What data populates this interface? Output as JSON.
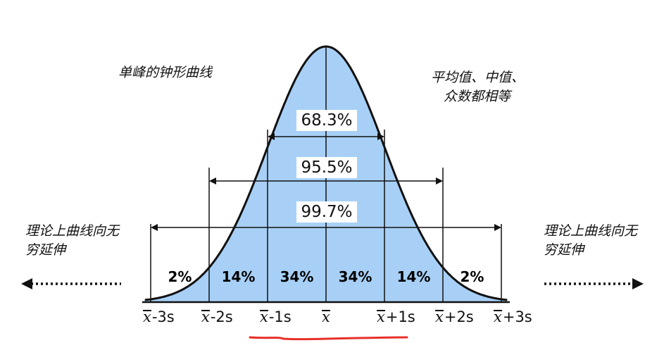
{
  "notes": {
    "bell_curve": "单峰的钟形曲线",
    "mean_equal_line1": "平均值、中值、",
    "mean_equal_line2": "众数都相等",
    "left_infinite_line1": "理论上曲线向无",
    "left_infinite_line2": "穷延伸",
    "right_infinite_line1": "理论上曲线向无",
    "right_infinite_line2": "穷延伸"
  },
  "intervals": [
    {
      "label": "68.3%",
      "from": -1,
      "to": 1
    },
    {
      "label": "95.5%",
      "from": -2,
      "to": 2
    },
    {
      "label": "99.7%",
      "from": -3,
      "to": 3
    }
  ],
  "segments": [
    {
      "label": "2%",
      "from": -3,
      "to": -2
    },
    {
      "label": "14%",
      "from": -2,
      "to": -1
    },
    {
      "label": "34%",
      "from": -1,
      "to": 0
    },
    {
      "label": "34%",
      "from": 0,
      "to": 1
    },
    {
      "label": "14%",
      "from": 1,
      "to": 2
    },
    {
      "label": "2%",
      "from": 2,
      "to": 3
    }
  ],
  "ticks": [
    {
      "sigma": -3,
      "symbol": "x",
      "suffix": "-3s"
    },
    {
      "sigma": -2,
      "symbol": "x",
      "suffix": "-2s"
    },
    {
      "sigma": -1,
      "symbol": "x",
      "suffix": "-1s"
    },
    {
      "sigma": 0,
      "symbol": "x",
      "suffix": ""
    },
    {
      "sigma": 1,
      "symbol": "x",
      "suffix": "+1s"
    },
    {
      "sigma": 2,
      "symbol": "x",
      "suffix": "+2s"
    },
    {
      "sigma": 3,
      "symbol": "x",
      "suffix": "+3s"
    }
  ],
  "colors": {
    "curve_fill": "#a8d0f6",
    "curve_stroke": "#111111",
    "lines": "#111111",
    "underline": "#e8302a"
  },
  "icons": {
    "left_arrow": "dotted-left-arrow-icon",
    "right_arrow": "dotted-right-arrow-icon"
  }
}
